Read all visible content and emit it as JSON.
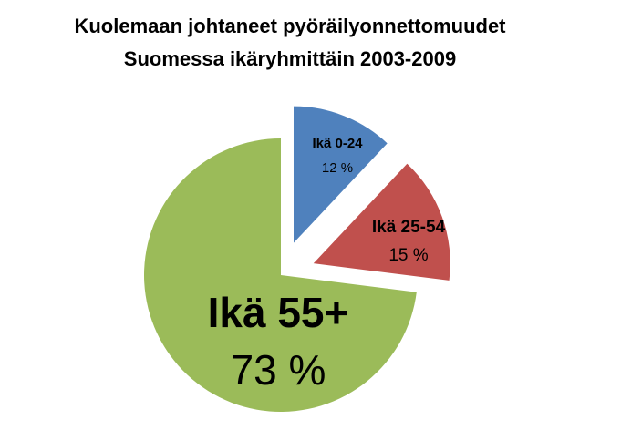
{
  "chart_data": {
    "type": "pie",
    "title": [
      "Kuolemaan johtaneet pyöräilyonnettomuudet",
      "Suomessa ikäryhmittäin 2003-2009"
    ],
    "categories": [
      "Ikä 0-24",
      "Ikä 25-54",
      "Ikä 55+"
    ],
    "values": [
      12,
      15,
      73
    ],
    "value_labels": [
      "12 %",
      "15 %",
      "73 %"
    ],
    "colors": [
      "#4f81bd",
      "#c0504d",
      "#9bbb59"
    ],
    "exploded": [
      true,
      true,
      false
    ]
  }
}
